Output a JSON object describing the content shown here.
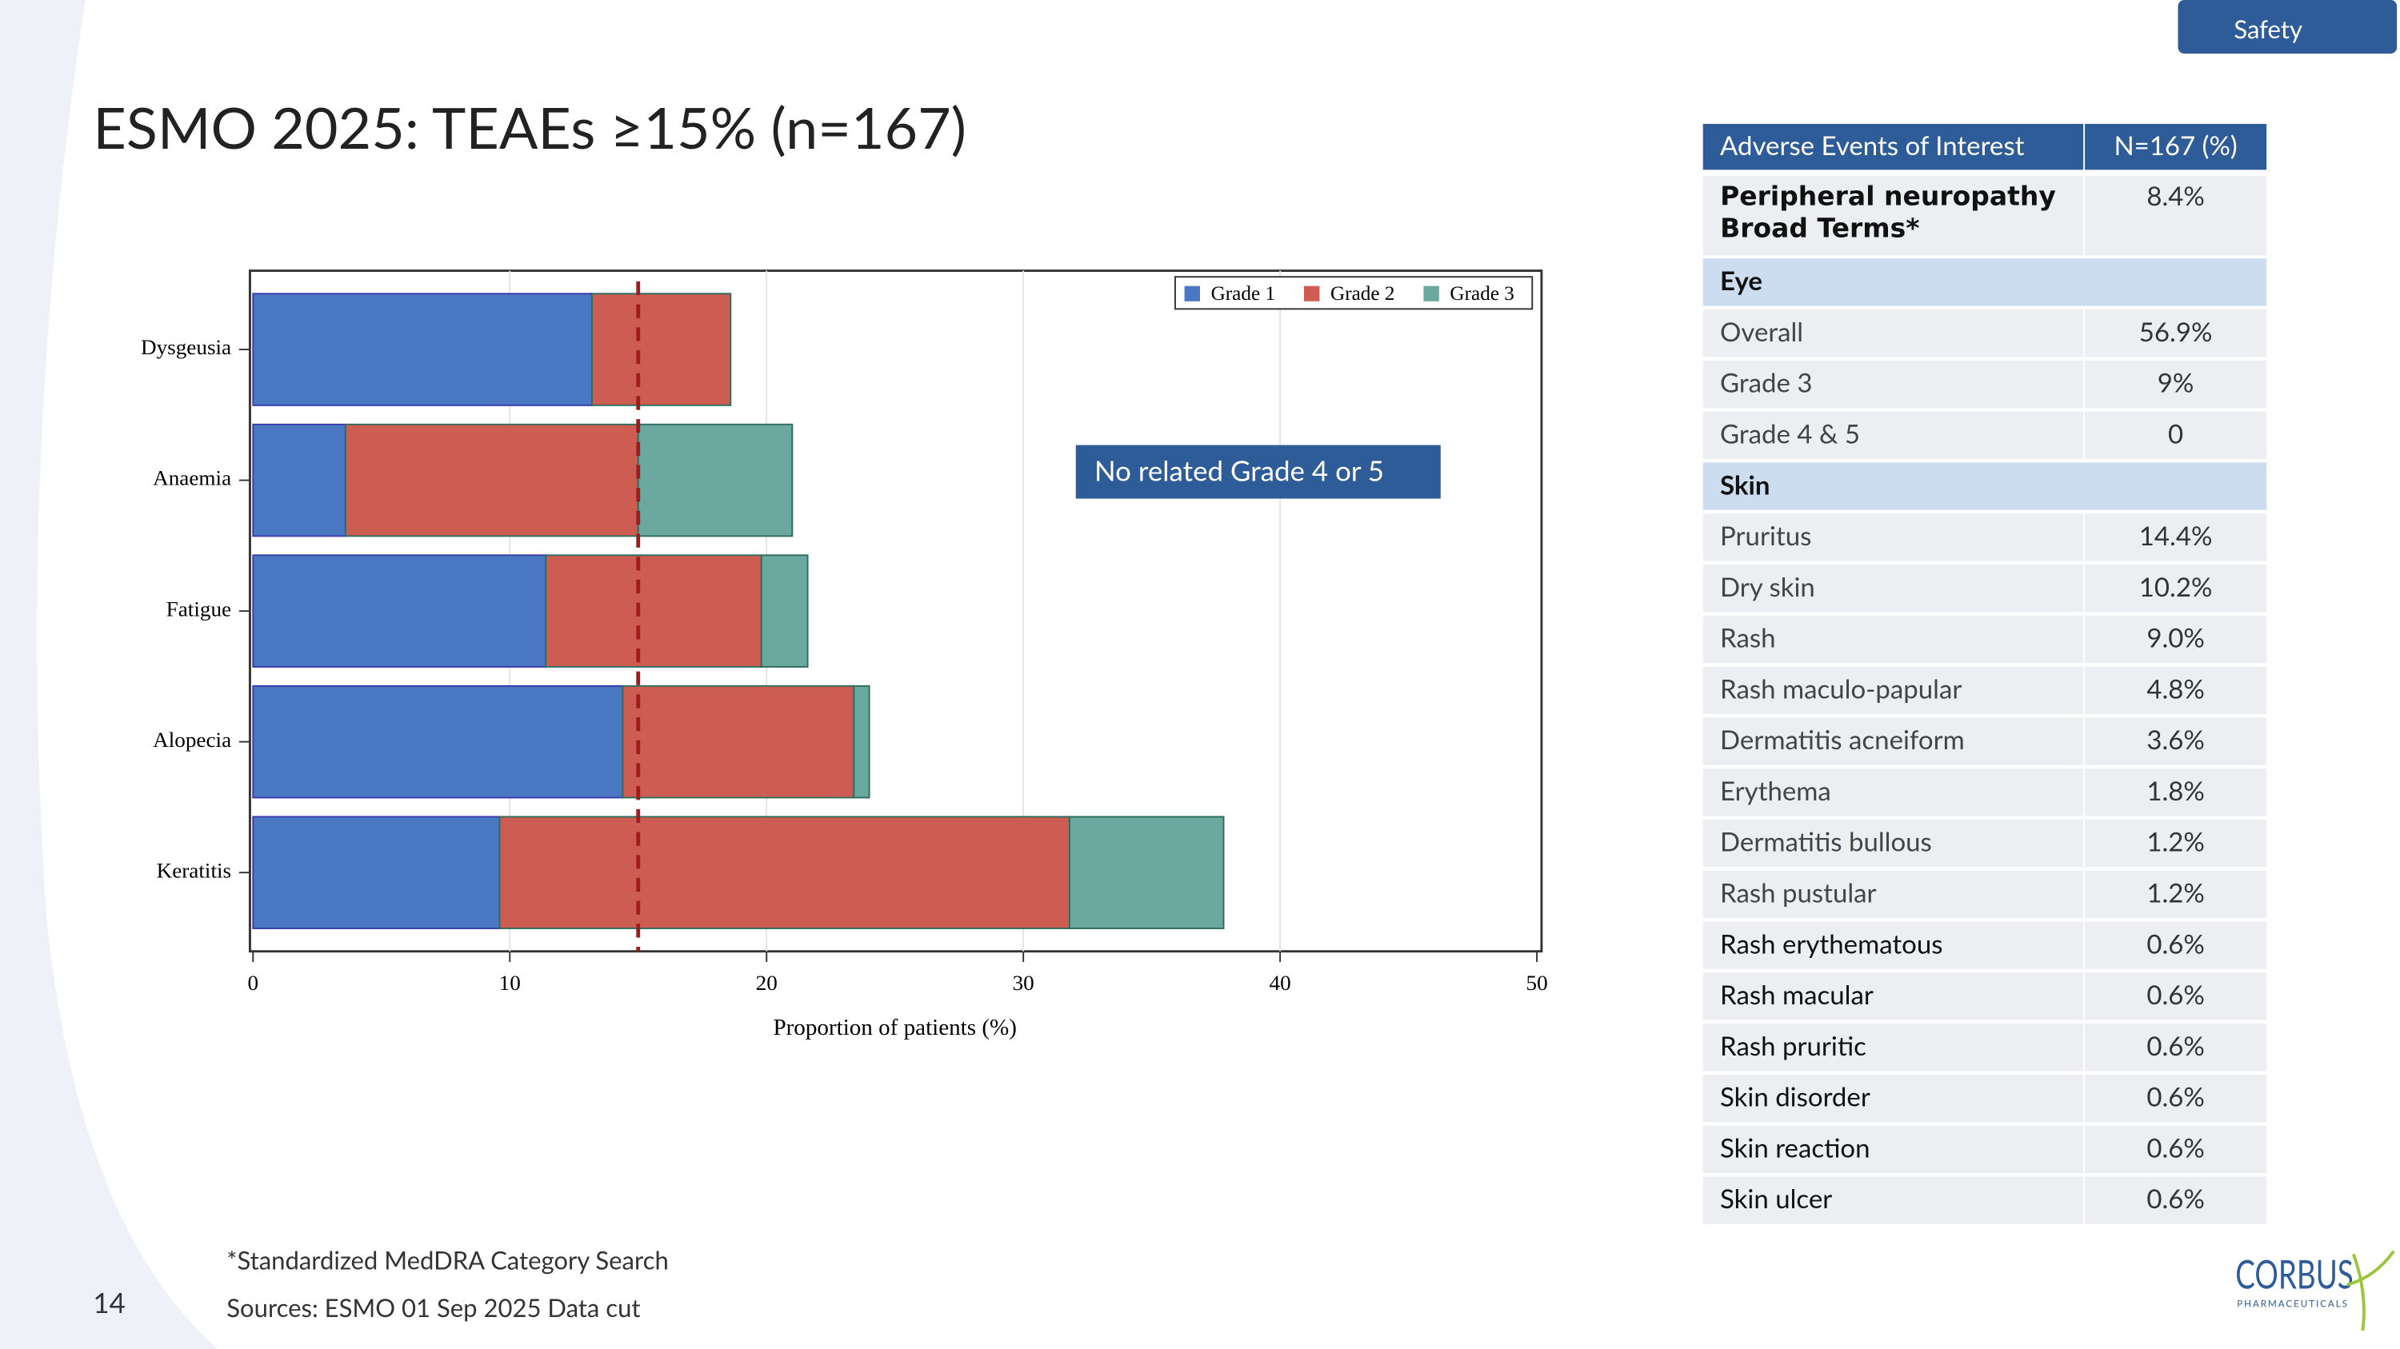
{
  "tag": "Safety",
  "title": "ESMO 2025: TEAEs ≥15% (n=167)",
  "chart_data": {
    "type": "bar",
    "orientation": "horizontal",
    "stacked": true,
    "categories": [
      "Dysgeusia",
      "Anaemia",
      "Fatigue",
      "Alopecia",
      "Keratitis"
    ],
    "series": [
      {
        "name": "Grade 1",
        "color": "#4a78c2",
        "values": [
          13.2,
          3.6,
          11.4,
          14.4,
          9.6
        ]
      },
      {
        "name": "Grade 2",
        "color": "#cd5c52",
        "values": [
          5.4,
          11.4,
          8.4,
          9.0,
          22.2
        ]
      },
      {
        "name": "Grade 3",
        "color": "#6aa8a0",
        "values": [
          0,
          6.0,
          1.8,
          0.6,
          6.0
        ]
      }
    ],
    "xlabel": "Proportion of patients (%)",
    "xlim": [
      0,
      50
    ],
    "xticks": [
      0,
      10,
      20,
      30,
      40,
      50
    ],
    "grid": true,
    "legend": "upper right",
    "reference_line": 15,
    "reference_color": "#a01c1c",
    "annotation": "No related Grade 4 or 5"
  },
  "table": {
    "header": [
      "Adverse Events of Interest",
      "N=167 (%)"
    ],
    "rows": [
      [
        "Peripheral neuropathy Broad Terms*",
        "8.4%"
      ],
      [
        "Eye"
      ],
      [
        "Overall",
        "56.9%"
      ],
      [
        "Grade 3",
        "9%"
      ],
      [
        "Grade 4 & 5",
        "0"
      ],
      [
        "Skin"
      ],
      [
        "Pruritus",
        "14.4%"
      ],
      [
        "Dry skin",
        "10.2%"
      ],
      [
        "Rash",
        "9.0%"
      ],
      [
        "Rash maculo-papular",
        "4.8%"
      ],
      [
        "Dermatitis acneiform",
        "3.6%"
      ],
      [
        "Erythema",
        "1.8%"
      ],
      [
        "Dermatitis bullous",
        "1.2%"
      ],
      [
        "Rash pustular",
        "1.2%"
      ],
      [
        "Rash erythematous",
        "0.6%"
      ],
      [
        "Rash macular",
        "0.6%"
      ],
      [
        "Rash pruritic",
        "0.6%"
      ],
      [
        "Skin disorder",
        "0.6%"
      ],
      [
        "Skin reaction",
        "0.6%"
      ],
      [
        "Skin ulcer",
        "0.6%"
      ]
    ]
  },
  "footnote": "*Standardized MedDRA Category Search",
  "sources": "Sources: ESMO 01 Sep 2025 Data cut",
  "page_number": "14",
  "logo": {
    "name": "CORBUS",
    "subtitle": "PHARMACEUTICALS"
  }
}
